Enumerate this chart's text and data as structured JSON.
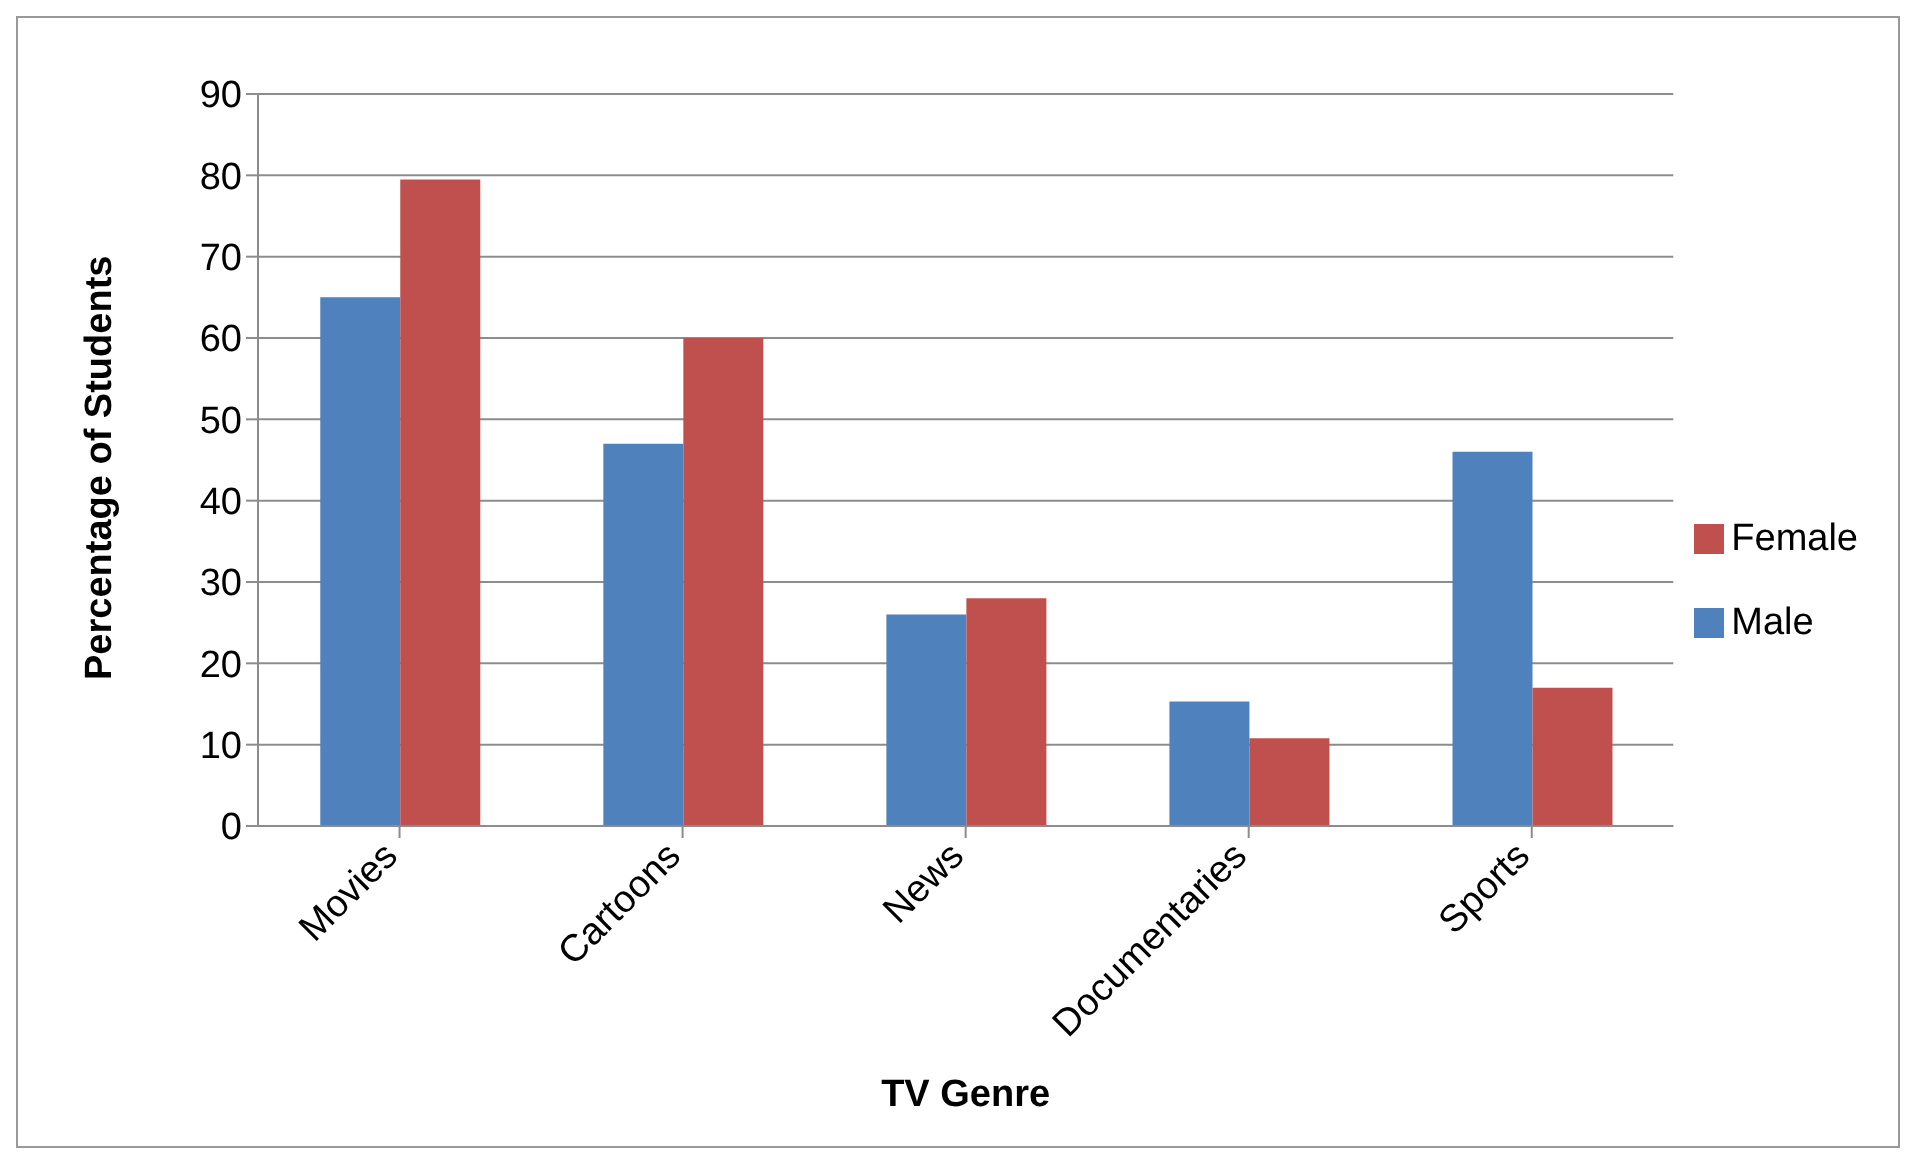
{
  "chart_data": {
    "type": "bar",
    "xlabel": "TV Genre",
    "ylabel": "Percentage of Students",
    "categories": [
      "Movies",
      "Cartoons",
      "News",
      "Documentaries",
      "Sports"
    ],
    "series": [
      {
        "name": "Male",
        "color": "#4f81bd",
        "values": [
          65,
          47,
          26,
          15.3,
          46
        ]
      },
      {
        "name": "Female",
        "color": "#c0504d",
        "values": [
          79.5,
          60,
          28,
          10.8,
          17
        ]
      }
    ],
    "ylim": [
      0,
      90
    ],
    "yticks": [
      0,
      10,
      20,
      30,
      40,
      50,
      60,
      70,
      80,
      90
    ],
    "grid": "y",
    "legend": "right"
  }
}
